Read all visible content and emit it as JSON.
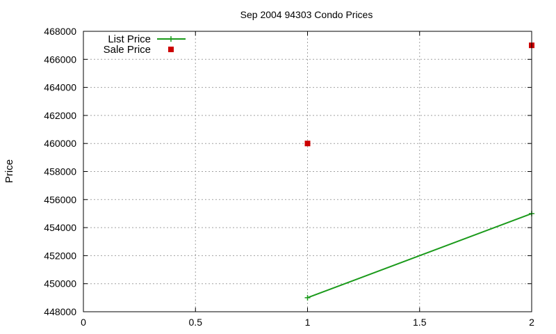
{
  "chart_data": {
    "type": "line",
    "title": "Sep 2004 94303 Condo Prices",
    "xlabel": "",
    "ylabel": "Price",
    "xlim": [
      0,
      2
    ],
    "ylim": [
      448000,
      468000
    ],
    "xticks": [
      "0",
      "0.5",
      "1",
      "1.5",
      "2"
    ],
    "yticks": [
      "448000",
      "450000",
      "452000",
      "454000",
      "456000",
      "458000",
      "460000",
      "462000",
      "464000",
      "466000",
      "468000"
    ],
    "grid": true,
    "legend_position": "top-left",
    "series": [
      {
        "name": "List Price",
        "style": "linespoints",
        "marker": "plus",
        "color": "#1a9a1a",
        "x": [
          1,
          2
        ],
        "y": [
          449000,
          455000
        ]
      },
      {
        "name": "Sale Price",
        "style": "points",
        "marker": "square",
        "color": "#cc0000",
        "x": [
          1,
          2
        ],
        "y": [
          460000,
          467000
        ]
      }
    ]
  }
}
